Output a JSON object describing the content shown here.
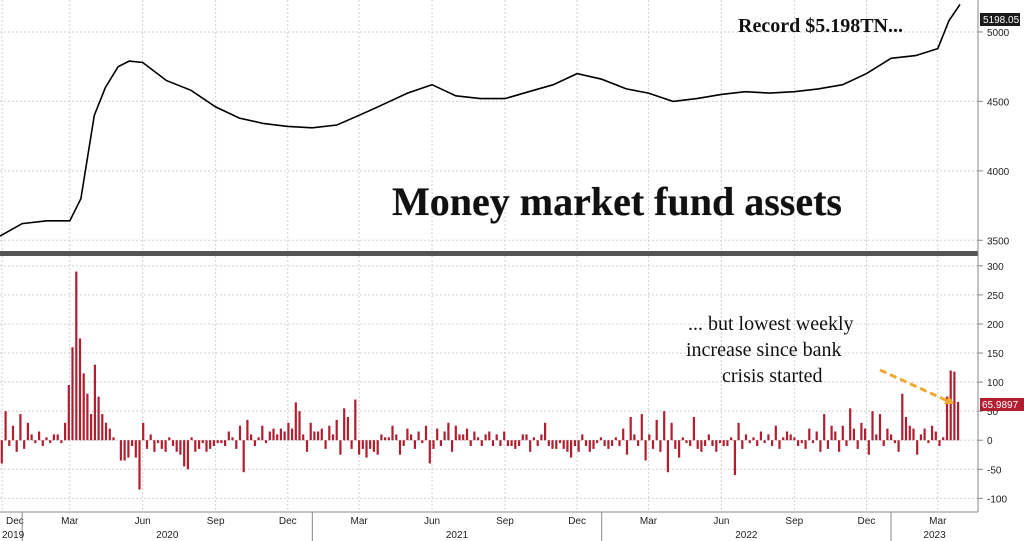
{
  "chart_data": [
    {
      "type": "line",
      "title": "Money market fund assets",
      "annotation": "Record $5.198TN...",
      "last_value_label": "5198.05",
      "ylim": [
        3430,
        5230
      ],
      "yticks": [
        3500,
        4000,
        4500,
        5000
      ],
      "line_color": "#000000",
      "x": [
        "2019-12-04",
        "2020-01-01",
        "2020-02-01",
        "2020-03-01",
        "2020-03-15",
        "2020-04-01",
        "2020-04-15",
        "2020-05-01",
        "2020-05-15",
        "2020-06-01",
        "2020-07-01",
        "2020-08-01",
        "2020-09-01",
        "2020-10-01",
        "2020-11-01",
        "2020-12-01",
        "2021-01-01",
        "2021-02-01",
        "2021-03-01",
        "2021-04-01",
        "2021-05-01",
        "2021-06-01",
        "2021-07-01",
        "2021-08-01",
        "2021-09-01",
        "2021-10-01",
        "2021-11-01",
        "2021-12-01",
        "2022-01-01",
        "2022-02-01",
        "2022-03-01",
        "2022-04-01",
        "2022-05-01",
        "2022-06-01",
        "2022-07-01",
        "2022-08-01",
        "2022-09-01",
        "2022-10-01",
        "2022-11-01",
        "2022-12-01",
        "2023-01-01",
        "2023-02-01",
        "2023-03-01",
        "2023-03-15",
        "2023-03-29"
      ],
      "y": [
        3530,
        3620,
        3640,
        3640,
        3800,
        4400,
        4600,
        4750,
        4790,
        4780,
        4650,
        4580,
        4460,
        4380,
        4340,
        4320,
        4310,
        4330,
        4400,
        4480,
        4560,
        4620,
        4540,
        4520,
        4520,
        4570,
        4620,
        4700,
        4660,
        4590,
        4560,
        4500,
        4520,
        4550,
        4570,
        4560,
        4570,
        4590,
        4620,
        4700,
        4810,
        4830,
        4880,
        5080,
        5198
      ]
    },
    {
      "type": "bar",
      "annotation": [
        "... but lowest weekly",
        "increase since bank",
        "crisis started"
      ],
      "last_value_label": "65.9897",
      "ylim": [
        -120,
        310
      ],
      "yticks": [
        -100,
        -50,
        0,
        50,
        100,
        150,
        200,
        250,
        300
      ],
      "bar_color": "#b01e2f",
      "values": [
        -40,
        50,
        -10,
        25,
        -20,
        45,
        -15,
        30,
        10,
        -5,
        15,
        -10,
        5,
        -5,
        10,
        10,
        -5,
        30,
        95,
        160,
        290,
        175,
        115,
        80,
        45,
        130,
        75,
        45,
        30,
        20,
        5,
        0,
        -35,
        -35,
        -30,
        -10,
        -30,
        -85,
        30,
        -15,
        10,
        -20,
        -5,
        -15,
        -20,
        5,
        -10,
        -20,
        -25,
        -45,
        -50,
        5,
        -20,
        -15,
        -5,
        -20,
        -15,
        -10,
        -5,
        -5,
        -10,
        15,
        5,
        -15,
        25,
        -55,
        35,
        10,
        -10,
        5,
        25,
        -5,
        15,
        20,
        10,
        20,
        15,
        30,
        20,
        65,
        50,
        10,
        -20,
        30,
        15,
        15,
        20,
        -15,
        25,
        10,
        35,
        -25,
        55,
        40,
        -15,
        70,
        -25,
        -15,
        -30,
        -15,
        -20,
        -25,
        10,
        5,
        5,
        25,
        10,
        -25,
        -10,
        20,
        10,
        -15,
        15,
        -5,
        25,
        -40,
        -15,
        20,
        -10,
        15,
        30,
        -20,
        25,
        10,
        10,
        20,
        -10,
        15,
        5,
        -10,
        10,
        15,
        -10,
        10,
        -10,
        15,
        -10,
        -10,
        -15,
        -10,
        10,
        10,
        -20,
        5,
        -10,
        10,
        30,
        -10,
        -15,
        -15,
        -5,
        -15,
        -20,
        -30,
        -10,
        -20,
        10,
        -10,
        -20,
        -15,
        -5,
        5,
        -10,
        -15,
        -10,
        5,
        -10,
        20,
        -25,
        40,
        10,
        -10,
        45,
        -35,
        10,
        -15,
        35,
        -20,
        50,
        -55,
        30,
        -15,
        -30,
        5,
        -5,
        -10,
        40,
        -15,
        -20,
        -10,
        10,
        -10,
        -20,
        -5,
        -10,
        -10,
        5,
        -60,
        30,
        -15,
        10,
        -5,
        5,
        -10,
        15,
        -5,
        10,
        -10,
        25,
        -15,
        5,
        15,
        10,
        5,
        -10,
        -5,
        -15,
        20,
        -5,
        15,
        -20,
        45,
        -15,
        25,
        15,
        -20,
        25,
        -10,
        55,
        20,
        -15,
        30,
        20,
        -25,
        50,
        10,
        45,
        -10,
        20,
        10,
        -5,
        -20,
        80,
        40,
        25,
        20,
        -25,
        10,
        20,
        -5,
        25,
        15,
        -10,
        5,
        75,
        120,
        118,
        66
      ],
      "value_labels": [
        {
          "text": "... but lowest weekly"
        },
        {
          "text": "increase since bank"
        },
        {
          "text": "crisis started"
        }
      ]
    }
  ],
  "x_axis": {
    "month_labels": [
      "Dec",
      "Mar",
      "Jun",
      "Sep",
      "Dec",
      "Mar",
      "Jun",
      "Sep",
      "Dec",
      "Mar",
      "Jun",
      "Sep",
      "Dec",
      "Mar"
    ],
    "year_labels": [
      "2019",
      "2020",
      "2021",
      "2022",
      "2023"
    ]
  },
  "text": {
    "title": "Money market fund assets",
    "record": "Record $5.198TN...",
    "top_last": "5198.05",
    "bottom_last": "65.9897",
    "annot1": "... but lowest weekly",
    "annot2": "increase since bank",
    "annot3": "crisis started"
  }
}
